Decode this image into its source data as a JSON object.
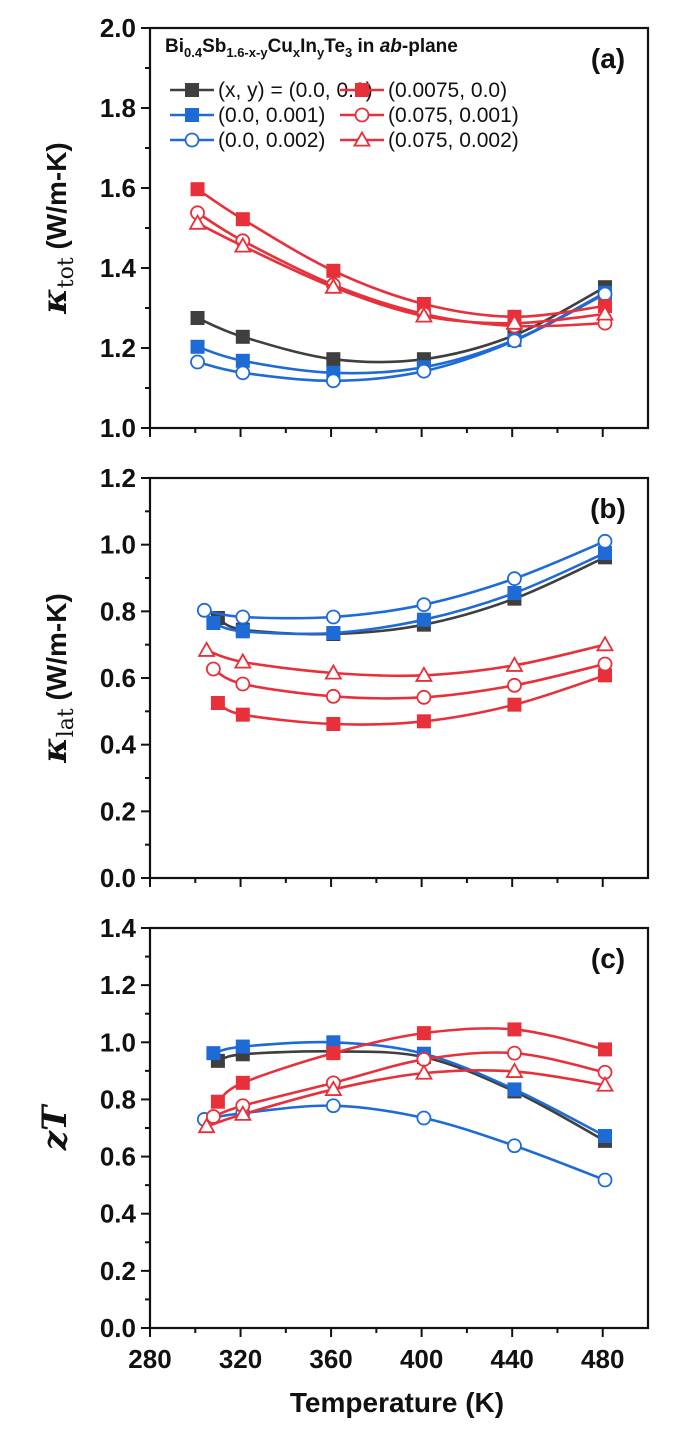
{
  "figure": {
    "xlabel": "Temperature (K)",
    "legend_title": {
      "prefix": "Bi",
      "sub1": "0.4",
      "mid1": "Sb",
      "sub2": "1.6-x-y",
      "mid2": "Cu",
      "sub3": "x",
      "mid3": "In",
      "sub4": "y",
      "mid4": "Te",
      "sub5": "3",
      "mid5": " in ",
      "italic": "ab",
      "suffix": "-plane"
    },
    "legend_entries": [
      "(x, y) = (0.0, 0.0)",
      "(0.0, 0.001)",
      "(0.0, 0.002)",
      "(0.0075, 0.0)",
      "(0.075, 0.001)",
      "(0.075, 0.002)"
    ]
  },
  "chart_data": [
    {
      "type": "line",
      "panel": "(a)",
      "ylabel": {
        "symbol": "κ",
        "sub": "tot",
        "unit": " (W/m-K)"
      },
      "xlim": [
        280,
        500
      ],
      "ylim": [
        1.0,
        2.0
      ],
      "xticks": [
        "280",
        "320",
        "360",
        "400",
        "440",
        "480"
      ],
      "yticks": [
        "1.0",
        "1.2",
        "1.4",
        "1.6",
        "1.8",
        "2.0"
      ],
      "series": [
        {
          "name": "(x, y) = (0.0, 0.0)",
          "color": "#3f3f3f",
          "marker": "square-filled",
          "x": [
            301,
            321,
            361,
            401,
            441,
            481
          ],
          "y": [
            1.275,
            1.228,
            1.172,
            1.172,
            1.232,
            1.352
          ]
        },
        {
          "name": "(0.0, 0.001)",
          "color": "#1f6bd6",
          "marker": "square-filled",
          "x": [
            301,
            321,
            361,
            401,
            441,
            481
          ],
          "y": [
            1.203,
            1.168,
            1.138,
            1.152,
            1.22,
            1.338
          ]
        },
        {
          "name": "(0.0, 0.002)",
          "color": "#1f6bd6",
          "marker": "circle-open",
          "x": [
            301,
            321,
            361,
            401,
            441,
            481
          ],
          "y": [
            1.165,
            1.138,
            1.118,
            1.142,
            1.218,
            1.335
          ]
        },
        {
          "name": "(0.0075, 0.0)",
          "color": "#e8303a",
          "marker": "square-filled",
          "x": [
            301,
            321,
            361,
            401,
            441,
            481
          ],
          "y": [
            1.597,
            1.522,
            1.393,
            1.31,
            1.278,
            1.305
          ]
        },
        {
          "name": "(0.075, 0.001)",
          "color": "#e8303a",
          "marker": "circle-open",
          "x": [
            301,
            321,
            361,
            401,
            441,
            481
          ],
          "y": [
            1.538,
            1.468,
            1.358,
            1.285,
            1.255,
            1.262
          ]
        },
        {
          "name": "(0.075, 0.002)",
          "color": "#e8303a",
          "marker": "triangle-open",
          "x": [
            301,
            321,
            361,
            401,
            441,
            481
          ],
          "y": [
            1.512,
            1.455,
            1.352,
            1.28,
            1.262,
            1.285
          ]
        }
      ]
    },
    {
      "type": "line",
      "panel": "(b)",
      "ylabel": {
        "symbol": "κ",
        "sub": "lat",
        "unit": " (W/m-K)"
      },
      "xlim": [
        280,
        500
      ],
      "ylim": [
        0.0,
        1.2
      ],
      "xticks": [
        "280",
        "320",
        "360",
        "400",
        "440",
        "480"
      ],
      "yticks": [
        "0.0",
        "0.2",
        "0.4",
        "0.6",
        "0.8",
        "1.0",
        "1.2"
      ],
      "series": [
        {
          "name": "(x, y) = (0.0, 0.0)",
          "color": "#3f3f3f",
          "marker": "square-filled",
          "x": [
            310,
            321,
            361,
            401,
            441,
            481
          ],
          "y": [
            0.78,
            0.745,
            0.732,
            0.76,
            0.838,
            0.962
          ]
        },
        {
          "name": "(0.0, 0.001)",
          "color": "#1f6bd6",
          "marker": "square-filled",
          "x": [
            308,
            321,
            361,
            401,
            441,
            481
          ],
          "y": [
            0.765,
            0.74,
            0.735,
            0.775,
            0.855,
            0.975
          ]
        },
        {
          "name": "(0.0, 0.002)",
          "color": "#1f6bd6",
          "marker": "circle-open",
          "x": [
            304,
            321,
            361,
            401,
            441,
            481
          ],
          "y": [
            0.803,
            0.783,
            0.783,
            0.82,
            0.898,
            1.01
          ]
        },
        {
          "name": "(0.0075, 0.0)",
          "color": "#e8303a",
          "marker": "square-filled",
          "x": [
            310,
            321,
            361,
            401,
            441,
            481
          ],
          "y": [
            0.525,
            0.49,
            0.462,
            0.47,
            0.52,
            0.608
          ]
        },
        {
          "name": "(0.075, 0.001)",
          "color": "#e8303a",
          "marker": "circle-open",
          "x": [
            308,
            321,
            361,
            401,
            441,
            481
          ],
          "y": [
            0.627,
            0.582,
            0.545,
            0.542,
            0.578,
            0.642
          ]
        },
        {
          "name": "(0.075, 0.002)",
          "color": "#e8303a",
          "marker": "triangle-open",
          "x": [
            305,
            321,
            361,
            401,
            441,
            481
          ],
          "y": [
            0.683,
            0.648,
            0.615,
            0.608,
            0.638,
            0.7
          ]
        }
      ]
    },
    {
      "type": "line",
      "panel": "(c)",
      "ylabel": {
        "symbol": "zT",
        "sub": "",
        "unit": ""
      },
      "xlim": [
        280,
        500
      ],
      "ylim": [
        0.0,
        1.4
      ],
      "xticks": [
        "280",
        "320",
        "360",
        "400",
        "440",
        "480"
      ],
      "yticks": [
        "0.0",
        "0.2",
        "0.4",
        "0.6",
        "0.8",
        "1.0",
        "1.2",
        "1.4"
      ],
      "series": [
        {
          "name": "(x, y) = (0.0, 0.0)",
          "color": "#3f3f3f",
          "marker": "square-filled",
          "x": [
            310,
            321,
            361,
            401,
            441,
            481
          ],
          "y": [
            0.935,
            0.958,
            0.968,
            0.948,
            0.828,
            0.655
          ]
        },
        {
          "name": "(0.0, 0.001)",
          "color": "#1f6bd6",
          "marker": "square-filled",
          "x": [
            308,
            321,
            361,
            401,
            441,
            481
          ],
          "y": [
            0.962,
            0.985,
            1.0,
            0.96,
            0.835,
            0.672
          ]
        },
        {
          "name": "(0.0, 0.002)",
          "color": "#1f6bd6",
          "marker": "circle-open",
          "x": [
            304,
            321,
            361,
            401,
            441,
            481
          ],
          "y": [
            0.73,
            0.752,
            0.778,
            0.735,
            0.638,
            0.518
          ]
        },
        {
          "name": "(0.0075, 0.0)",
          "color": "#e8303a",
          "marker": "square-filled",
          "x": [
            310,
            321,
            361,
            401,
            441,
            481
          ],
          "y": [
            0.792,
            0.858,
            0.962,
            1.032,
            1.045,
            0.975
          ]
        },
        {
          "name": "(0.075, 0.001)",
          "color": "#e8303a",
          "marker": "circle-open",
          "x": [
            308,
            321,
            361,
            401,
            441,
            481
          ],
          "y": [
            0.74,
            0.778,
            0.858,
            0.94,
            0.962,
            0.895
          ]
        },
        {
          "name": "(0.075, 0.002)",
          "color": "#e8303a",
          "marker": "triangle-open",
          "x": [
            305,
            321,
            361,
            401,
            441,
            481
          ],
          "y": [
            0.705,
            0.748,
            0.835,
            0.892,
            0.898,
            0.85
          ]
        }
      ]
    }
  ]
}
